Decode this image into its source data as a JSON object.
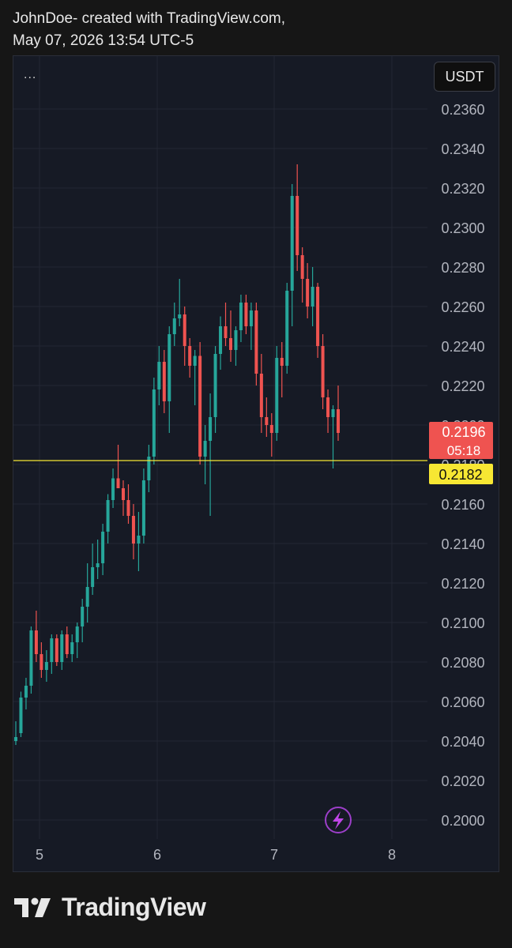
{
  "header": {
    "line1": "JohnDoe- created with TradingView.com,",
    "line2": "May 07, 2026 13:54 UTC-5"
  },
  "toolbar": {
    "currency": "USDT",
    "menu": "..."
  },
  "footer": {
    "brand": "TradingView"
  },
  "colors": {
    "up": "#26a69a",
    "down": "#ef5350",
    "priceLine": "#f7e733",
    "bg": "#161a25",
    "grid": "#232733",
    "text": "#b2b5be"
  },
  "chart_data": {
    "type": "candlestick",
    "y_ticks": [
      "0.2360",
      "0.2340",
      "0.2320",
      "0.2300",
      "0.2280",
      "0.2260",
      "0.2240",
      "0.2220",
      "0.2200",
      "0.2180",
      "0.2160",
      "0.2140",
      "0.2120",
      "0.2100",
      "0.2080",
      "0.2060",
      "0.2040",
      "0.2020",
      "0.2000"
    ],
    "x_ticks": [
      "5",
      "6",
      "7",
      "8"
    ],
    "ylim": [
      0.1992,
      0.238
    ],
    "current_price": {
      "value": "0.2196",
      "countdown": "05:18"
    },
    "marker_price": {
      "value": "0.2182"
    },
    "candles": [
      [
        0.204,
        0.205,
        0.2038,
        0.2042
      ],
      [
        0.2044,
        0.2065,
        0.2042,
        0.2062
      ],
      [
        0.2062,
        0.2072,
        0.2056,
        0.2068
      ],
      [
        0.2068,
        0.2098,
        0.2064,
        0.2096
      ],
      [
        0.2096,
        0.2106,
        0.208,
        0.2084
      ],
      [
        0.2084,
        0.209,
        0.2072,
        0.2076
      ],
      [
        0.2076,
        0.2086,
        0.207,
        0.208
      ],
      [
        0.208,
        0.2094,
        0.2074,
        0.2092
      ],
      [
        0.2092,
        0.2094,
        0.2078,
        0.208
      ],
      [
        0.208,
        0.2096,
        0.2076,
        0.2094
      ],
      [
        0.2094,
        0.2098,
        0.2082,
        0.2084
      ],
      [
        0.2084,
        0.2094,
        0.208,
        0.209
      ],
      [
        0.209,
        0.21,
        0.2082,
        0.2098
      ],
      [
        0.2098,
        0.2112,
        0.209,
        0.2108
      ],
      [
        0.2108,
        0.213,
        0.21,
        0.2118
      ],
      [
        0.2118,
        0.214,
        0.2114,
        0.2128
      ],
      [
        0.2128,
        0.2142,
        0.2122,
        0.213
      ],
      [
        0.213,
        0.215,
        0.2124,
        0.2146
      ],
      [
        0.2146,
        0.2165,
        0.214,
        0.2162
      ],
      [
        0.2162,
        0.2178,
        0.2158,
        0.2173
      ],
      [
        0.2173,
        0.219,
        0.2168,
        0.2168
      ],
      [
        0.2168,
        0.2172,
        0.2154,
        0.2162
      ],
      [
        0.2162,
        0.217,
        0.215,
        0.2154
      ],
      [
        0.2154,
        0.216,
        0.2132,
        0.214
      ],
      [
        0.214,
        0.2156,
        0.2126,
        0.2144
      ],
      [
        0.2144,
        0.2178,
        0.214,
        0.2172
      ],
      [
        0.2172,
        0.219,
        0.2166,
        0.2184
      ],
      [
        0.2184,
        0.2224,
        0.218,
        0.2218
      ],
      [
        0.2218,
        0.224,
        0.221,
        0.2232
      ],
      [
        0.2232,
        0.2238,
        0.2206,
        0.2212
      ],
      [
        0.2212,
        0.225,
        0.2196,
        0.2246
      ],
      [
        0.2246,
        0.2262,
        0.224,
        0.2254
      ],
      [
        0.2254,
        0.2274,
        0.225,
        0.2256
      ],
      [
        0.2256,
        0.226,
        0.223,
        0.224
      ],
      [
        0.224,
        0.2244,
        0.2224,
        0.223
      ],
      [
        0.223,
        0.2238,
        0.221,
        0.2235
      ],
      [
        0.2235,
        0.2242,
        0.218,
        0.2184
      ],
      [
        0.2184,
        0.22,
        0.217,
        0.2192
      ],
      [
        0.2192,
        0.2216,
        0.2154,
        0.2204
      ],
      [
        0.2204,
        0.224,
        0.2196,
        0.2236
      ],
      [
        0.2236,
        0.2255,
        0.2228,
        0.225
      ],
      [
        0.225,
        0.2262,
        0.224,
        0.2244
      ],
      [
        0.2244,
        0.2258,
        0.2232,
        0.2238
      ],
      [
        0.2238,
        0.225,
        0.223,
        0.2248
      ],
      [
        0.2248,
        0.2266,
        0.2242,
        0.2262
      ],
      [
        0.2262,
        0.2266,
        0.2246,
        0.225
      ],
      [
        0.225,
        0.2262,
        0.2238,
        0.2258
      ],
      [
        0.2258,
        0.2262,
        0.222,
        0.2226
      ],
      [
        0.2226,
        0.2236,
        0.2196,
        0.2204
      ],
      [
        0.2204,
        0.2214,
        0.2194,
        0.22
      ],
      [
        0.22,
        0.2206,
        0.2184,
        0.2196
      ],
      [
        0.2196,
        0.224,
        0.2192,
        0.2234
      ],
      [
        0.2234,
        0.2242,
        0.2214,
        0.223
      ],
      [
        0.223,
        0.2272,
        0.2226,
        0.2268
      ],
      [
        0.2268,
        0.2322,
        0.225,
        0.2316
      ],
      [
        0.2316,
        0.2332,
        0.2278,
        0.2286
      ],
      [
        0.2286,
        0.229,
        0.2262,
        0.2274
      ],
      [
        0.2274,
        0.2282,
        0.2254,
        0.226
      ],
      [
        0.226,
        0.228,
        0.225,
        0.227
      ],
      [
        0.227,
        0.2272,
        0.2234,
        0.224
      ],
      [
        0.224,
        0.2246,
        0.2208,
        0.2214
      ],
      [
        0.2214,
        0.2218,
        0.2196,
        0.2204
      ],
      [
        0.2204,
        0.221,
        0.2178,
        0.2208
      ],
      [
        0.2208,
        0.222,
        0.2192,
        0.2196
      ]
    ]
  }
}
